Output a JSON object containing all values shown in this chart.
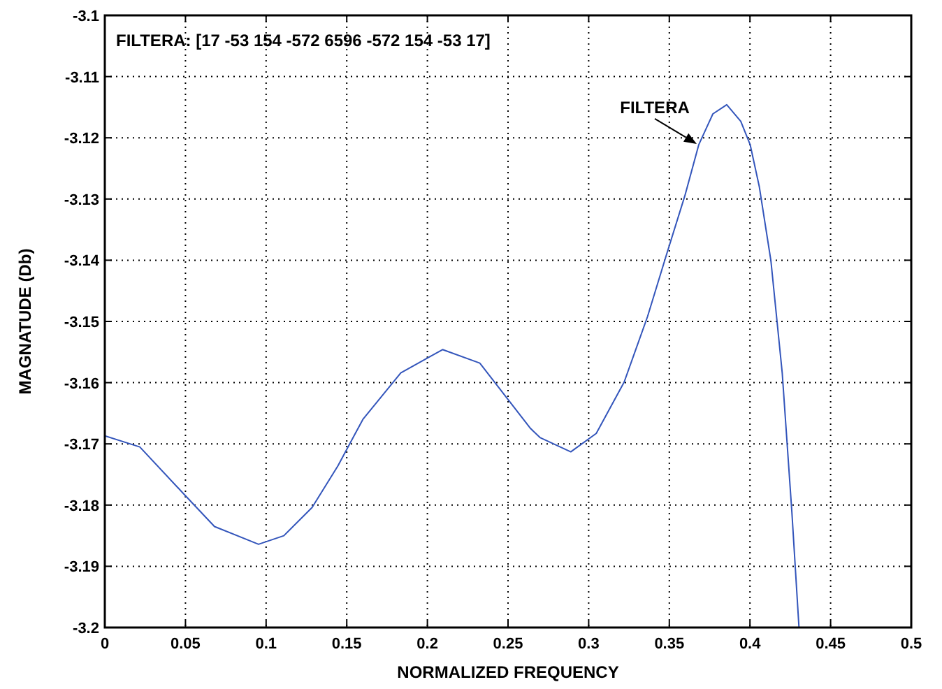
{
  "chart_data": {
    "type": "line",
    "title": "FILTERA: [17 -53 154 -572 6596 -572 154 -53 17]",
    "xlabel": "NORMALIZED FREQUENCY",
    "ylabel": "MAGNATUDE (Db)",
    "xlim": [
      0,
      0.5
    ],
    "xticks": [
      0,
      0.05,
      0.1,
      0.15,
      0.2,
      0.25,
      0.3,
      0.35,
      0.4,
      0.45,
      0.5
    ],
    "ylim": [
      -3.2,
      -3.1
    ],
    "yticks": [
      -3.2,
      -3.19,
      -3.18,
      -3.17,
      -3.16,
      -3.15,
      -3.14,
      -3.13,
      -3.12,
      -3.11,
      -3.1
    ],
    "grid": true,
    "line_style": "solid",
    "marker": "none",
    "annotations": [
      {
        "text": "FILTERA",
        "x": 0.367,
        "y": -3.121
      }
    ],
    "series": [
      {
        "color": "#3355bb",
        "x": [
          0,
          0.0217,
          0.049,
          0.068,
          0.0953,
          0.111,
          0.1285,
          0.1445,
          0.16,
          0.1835,
          0.2094,
          0.2325,
          0.264,
          0.27,
          0.2889,
          0.3047,
          0.322,
          0.3365,
          0.348,
          0.3596,
          0.3683,
          0.377,
          0.3856,
          0.3943,
          0.4001,
          0.4058,
          0.413,
          0.42,
          0.426,
          0.4304
        ],
        "values": [
          -3.1687,
          -3.1705,
          -3.1782,
          -3.1835,
          -3.1864,
          -3.185,
          -3.1804,
          -3.1736,
          -3.166,
          -3.1584,
          -3.1546,
          -3.1568,
          -3.1675,
          -3.169,
          -3.1713,
          -3.1683,
          -3.1599,
          -3.1492,
          -3.1393,
          -3.1295,
          -3.1211,
          -3.1161,
          -3.1146,
          -3.1173,
          -3.1211,
          -3.128,
          -3.1401,
          -3.1584,
          -3.1812,
          -3.2
        ]
      }
    ]
  }
}
